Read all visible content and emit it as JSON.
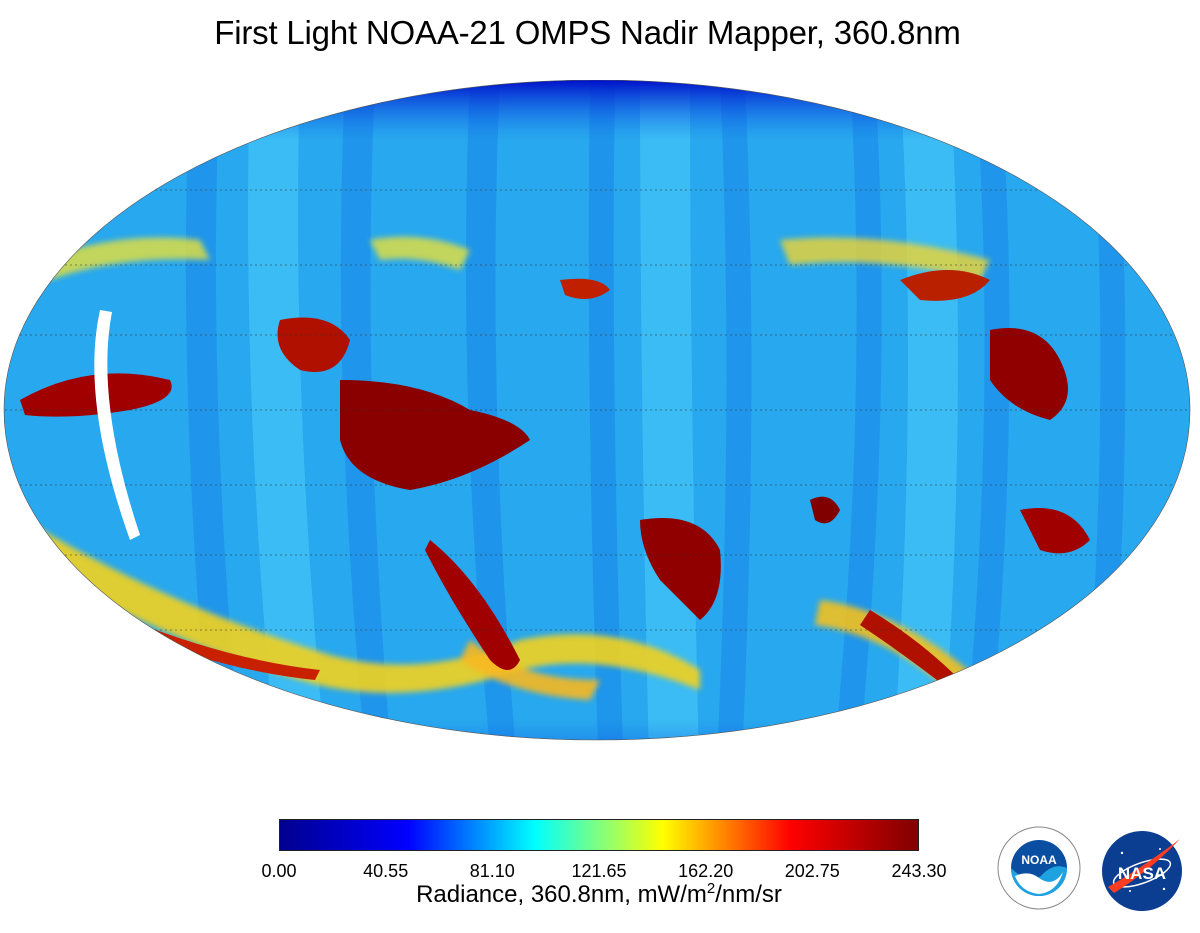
{
  "title": "First Light NOAA-21 OMPS Nadir Mapper, 360.8nm",
  "colorbar": {
    "ticks": [
      "0.00",
      "40.55",
      "81.10",
      "121.65",
      "162.20",
      "202.75",
      "243.30"
    ],
    "label_prefix": "Radiance, 360.8nm, mW/m",
    "label_exponent": "2",
    "label_suffix": "/nm/sr",
    "range": [
      0,
      243.3
    ],
    "colormap": "jet",
    "colors": [
      "#00008f",
      "#0000ff",
      "#00ffff",
      "#ffff00",
      "#ff0000",
      "#800000"
    ]
  },
  "map": {
    "projection": "Hammer-Aitoff (global)",
    "graticule": "dotted",
    "ocean_color": "#28a8ee"
  },
  "logos": {
    "noaa": {
      "text": "NOAA",
      "color": "#0a4ea1"
    },
    "nasa": {
      "text": "NASA",
      "color": "#0b3d91",
      "accent": "#fc3d21"
    }
  }
}
